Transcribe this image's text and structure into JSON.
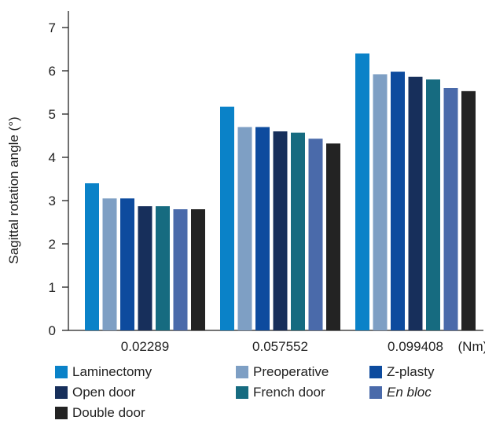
{
  "chart_data": {
    "type": "bar",
    "title": "",
    "xlabel": "",
    "ylabel": "Sagittal rotation angle (°)",
    "x_unit": "(Nm)",
    "categories": [
      "0.02289",
      "0.057552",
      "0.099408"
    ],
    "ylim": [
      0,
      7
    ],
    "yticks": [
      0,
      1,
      2,
      3,
      4,
      5,
      6,
      7
    ],
    "grid": false,
    "legend_position": "bottom",
    "series": [
      {
        "name": "Laminectomy",
        "color": "#0a82c8",
        "values": [
          3.4,
          5.17,
          6.4
        ]
      },
      {
        "name": "Preoperative",
        "color": "#7e9fc4",
        "values": [
          3.05,
          4.7,
          5.92
        ]
      },
      {
        "name": "Z-plasty",
        "color": "#0d4b9e",
        "values": [
          3.05,
          4.7,
          5.98
        ]
      },
      {
        "name": "Open door",
        "color": "#172f5b",
        "values": [
          2.87,
          4.6,
          5.86
        ]
      },
      {
        "name": "French door",
        "color": "#166b80",
        "values": [
          2.87,
          4.57,
          5.8
        ]
      },
      {
        "name": "En bloc",
        "color": "#4a6aaa",
        "values": [
          2.8,
          4.43,
          5.6
        ]
      },
      {
        "name": "Double door",
        "color": "#232323",
        "values": [
          2.8,
          4.32,
          5.53
        ]
      }
    ]
  }
}
